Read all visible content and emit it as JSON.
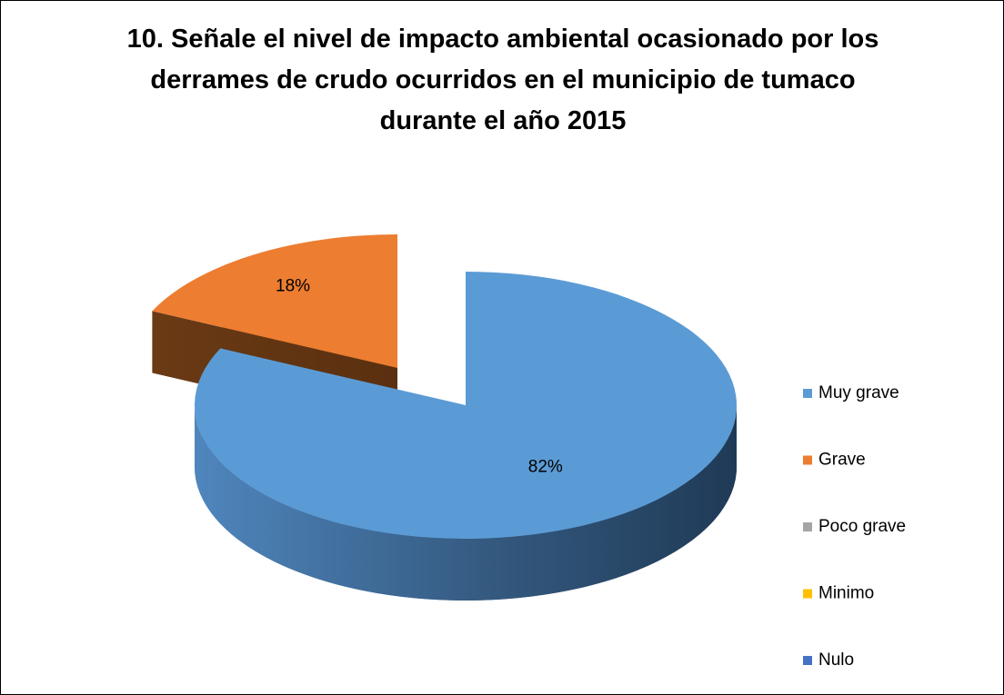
{
  "chart_data": {
    "type": "pie3d",
    "title": "10. Señale el nivel de impacto ambiental ocasionado por los derrames de crudo ocurridos en el municipio de tumaco durante el año 2015",
    "categories": [
      "Muy grave",
      "Grave",
      "Poco grave",
      "Minimo",
      "Nulo"
    ],
    "values": [
      82,
      18,
      0,
      0,
      0
    ],
    "value_labels": [
      "82%",
      "18%",
      null,
      null,
      null
    ],
    "colors": [
      "#5b9bd5",
      "#ed7d31",
      "#a5a5a5",
      "#ffc000",
      "#4472c4"
    ],
    "legend": "right"
  }
}
